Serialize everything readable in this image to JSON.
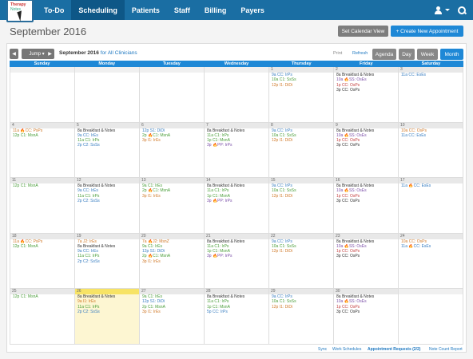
{
  "nav": {
    "logo_line1": "Therapy",
    "logo_line2": "Notes",
    "items": [
      "To-Do",
      "Scheduling",
      "Patients",
      "Staff",
      "Billing",
      "Payers"
    ],
    "active": "Scheduling"
  },
  "title": "September 2016",
  "buttons": {
    "set_view": "Set Calendar View",
    "create": "+ Create New Appointment"
  },
  "toolbar": {
    "prev": "◀",
    "jump": "Jump ▾",
    "next": "▶",
    "month": "September 2016",
    "clinicians": "for All Clinicians",
    "print": "Print",
    "refresh": "Refresh",
    "views": [
      "Agenda",
      "Day",
      "Week",
      "Month"
    ],
    "active_view": "Month"
  },
  "day_headers": [
    "Sunday",
    "Monday",
    "Tuesday",
    "Wednesday",
    "Thursday",
    "Friday",
    "Saturday"
  ],
  "colors": {
    "green": "#4a9e3a",
    "blue": "#3a7fc2",
    "orange": "#d07a2a",
    "purple": "#7b4fa8",
    "red": "#c44040",
    "dark": "#333"
  },
  "weeks": [
    [
      {
        "n": "",
        "e": []
      },
      {
        "n": "",
        "e": []
      },
      {
        "n": "",
        "e": []
      },
      {
        "n": "",
        "e": []
      },
      {
        "n": "1",
        "e": [
          {
            "t": "9a CC: IrPs",
            "c": "blue"
          },
          {
            "t": "10a C1: SsSs",
            "c": "green"
          },
          {
            "t": "12p I1: DiDi",
            "c": "orange"
          }
        ]
      },
      {
        "n": "2",
        "e": [
          {
            "t": "8a Breakfast & Notes",
            "c": "dark"
          },
          {
            "t": "10a 🔥SS: OsEs",
            "c": "purple"
          },
          {
            "t": "1p CC: OsPs",
            "c": "red"
          },
          {
            "t": "3p CC: OsPs",
            "c": "dark"
          }
        ]
      },
      {
        "n": "3",
        "e": [
          {
            "t": "11a CC: EsEs",
            "c": "blue"
          }
        ]
      }
    ],
    [
      {
        "n": "4",
        "e": [
          {
            "t": "11a 🔥CC: PsPs",
            "c": "orange"
          },
          {
            "t": "12p C1: MsnA",
            "c": "green"
          }
        ]
      },
      {
        "n": "5",
        "e": [
          {
            "t": "8a Breakfast & Notes",
            "c": "dark"
          },
          {
            "t": "9a CC: IrEs",
            "c": "blue"
          },
          {
            "t": "11a C1: IrPs",
            "c": "green"
          },
          {
            "t": "2p C2: SsSs",
            "c": "blue"
          }
        ]
      },
      {
        "n": "6",
        "e": [
          {
            "t": "12p S1: DiDi",
            "c": "blue"
          },
          {
            "t": "2p 🔥C1: MsnA",
            "c": "green"
          },
          {
            "t": "3p I1: IrEs",
            "c": "orange"
          }
        ]
      },
      {
        "n": "7",
        "e": [
          {
            "t": "8a Breakfast & Notes",
            "c": "dark"
          },
          {
            "t": "11a C1: IrPs",
            "c": "green"
          },
          {
            "t": "1p C1: MsnA",
            "c": "green"
          },
          {
            "t": "3p 🔥PP: IrPs",
            "c": "purple"
          }
        ]
      },
      {
        "n": "8",
        "e": [
          {
            "t": "9a CC: IrPs",
            "c": "blue"
          },
          {
            "t": "10a C1: SsSs",
            "c": "green"
          },
          {
            "t": "12p I1: DiDi",
            "c": "orange"
          }
        ]
      },
      {
        "n": "9",
        "e": [
          {
            "t": "8a Breakfast & Notes",
            "c": "dark"
          },
          {
            "t": "10a 🔥SS: OsEs",
            "c": "purple"
          },
          {
            "t": "1p CC: OsPs",
            "c": "red"
          },
          {
            "t": "3p CC: OsPs",
            "c": "dark"
          }
        ]
      },
      {
        "n": "10",
        "e": [
          {
            "t": "10a CC: OsPs",
            "c": "orange"
          },
          {
            "t": "11a CC: EsEs",
            "c": "blue"
          }
        ]
      }
    ],
    [
      {
        "n": "11",
        "e": [
          {
            "t": "12p C1: MsnA",
            "c": "green"
          }
        ]
      },
      {
        "n": "12",
        "e": [
          {
            "t": "8a Breakfast & Notes",
            "c": "dark"
          },
          {
            "t": "9a CC: IrEs",
            "c": "blue"
          },
          {
            "t": "11a C1: IrPs",
            "c": "green"
          },
          {
            "t": "2p C2: SsSs",
            "c": "blue"
          }
        ]
      },
      {
        "n": "13",
        "e": [
          {
            "t": "9a C1: IrEs",
            "c": "green"
          },
          {
            "t": "2p 🔥C1: MsnA",
            "c": "green"
          },
          {
            "t": "3p I1: IrEs",
            "c": "orange"
          }
        ]
      },
      {
        "n": "14",
        "e": [
          {
            "t": "8a Breakfast & Notes",
            "c": "dark"
          },
          {
            "t": "11a C1: IrPs",
            "c": "green"
          },
          {
            "t": "1p C1: MsnA",
            "c": "green"
          },
          {
            "t": "3p 🔥PP: IrPs",
            "c": "purple"
          }
        ]
      },
      {
        "n": "15",
        "e": [
          {
            "t": "9a CC: IrPs",
            "c": "blue"
          },
          {
            "t": "10a C1: SsSs",
            "c": "green"
          },
          {
            "t": "12p I1: DiDi",
            "c": "orange"
          }
        ]
      },
      {
        "n": "16",
        "e": [
          {
            "t": "8a Breakfast & Notes",
            "c": "dark"
          },
          {
            "t": "10a 🔥SS: OsEs",
            "c": "purple"
          },
          {
            "t": "1p CC: OsPs",
            "c": "red"
          },
          {
            "t": "3p CC: OsPs",
            "c": "dark"
          }
        ]
      },
      {
        "n": "17",
        "e": [
          {
            "t": "11a 🔥CC: EsEs",
            "c": "blue"
          }
        ]
      }
    ],
    [
      {
        "n": "18",
        "e": [
          {
            "t": "11a 🔥CC: PsPs",
            "c": "orange"
          },
          {
            "t": "12p C1: MsnA",
            "c": "green"
          }
        ]
      },
      {
        "n": "19",
        "e": [
          {
            "t": "7a J2: IrEs",
            "c": "orange"
          },
          {
            "t": "8a Breakfast & Notes",
            "c": "dark"
          },
          {
            "t": "9a CC: IrEs",
            "c": "blue"
          },
          {
            "t": "11a C1: IrPs",
            "c": "green"
          },
          {
            "t": "2p C2: SsSs",
            "c": "blue"
          }
        ]
      },
      {
        "n": "20",
        "e": [
          {
            "t": "7a 🔥J2: MsnZ",
            "c": "orange"
          },
          {
            "t": "9a C1: IrEs",
            "c": "green"
          },
          {
            "t": "12p S1: DiDi",
            "c": "blue"
          },
          {
            "t": "2p 🔥C1: MsnA",
            "c": "green"
          },
          {
            "t": "3p I1: IrEs",
            "c": "orange"
          }
        ]
      },
      {
        "n": "21",
        "e": [
          {
            "t": "8a Breakfast & Notes",
            "c": "dark"
          },
          {
            "t": "11a C1: IrPs",
            "c": "green"
          },
          {
            "t": "1p C1: MsnA",
            "c": "green"
          },
          {
            "t": "3p 🔥PP: IrPs",
            "c": "purple"
          }
        ]
      },
      {
        "n": "22",
        "e": [
          {
            "t": "9a CC: IrPs",
            "c": "blue"
          },
          {
            "t": "10a C1: SsSs",
            "c": "green"
          },
          {
            "t": "12p I1: DiDi",
            "c": "orange"
          }
        ]
      },
      {
        "n": "23",
        "e": [
          {
            "t": "8a Breakfast & Notes",
            "c": "dark"
          },
          {
            "t": "10a 🔥SS: OsEs",
            "c": "purple"
          },
          {
            "t": "1p CC: OsPs",
            "c": "red"
          },
          {
            "t": "3p CC: OsPs",
            "c": "dark"
          }
        ]
      },
      {
        "n": "24",
        "e": [
          {
            "t": "10a CC: OsPs",
            "c": "orange"
          },
          {
            "t": "11a 🔥CC: EsEs",
            "c": "blue"
          }
        ]
      }
    ],
    [
      {
        "n": "25",
        "e": [
          {
            "t": "12p C1: MsnA",
            "c": "green"
          }
        ]
      },
      {
        "n": "26",
        "today": true,
        "e": [
          {
            "t": "8a Breakfast & Notes",
            "c": "dark"
          },
          {
            "t": "9a I1: IrEs",
            "c": "orange"
          },
          {
            "t": "11a C1: IrPs",
            "c": "green"
          },
          {
            "t": "2p C2: SsSs",
            "c": "blue"
          }
        ]
      },
      {
        "n": "27",
        "e": [
          {
            "t": "9a C1: IrEs",
            "c": "green"
          },
          {
            "t": "12p S1: DiDi",
            "c": "blue"
          },
          {
            "t": "2p C1: MsnA",
            "c": "green"
          },
          {
            "t": "3p I1: IrEs",
            "c": "orange"
          }
        ]
      },
      {
        "n": "28",
        "e": [
          {
            "t": "8a Breakfast & Notes",
            "c": "dark"
          },
          {
            "t": "11a C1: IrPs",
            "c": "green"
          },
          {
            "t": "1p C1: MsnA",
            "c": "green"
          },
          {
            "t": "5p CC: IrPs",
            "c": "blue"
          }
        ]
      },
      {
        "n": "29",
        "e": [
          {
            "t": "9a CC: IrPs",
            "c": "blue"
          },
          {
            "t": "10a C1: SsSs",
            "c": "green"
          },
          {
            "t": "12p I1: DiDi",
            "c": "orange"
          }
        ]
      },
      {
        "n": "30",
        "e": [
          {
            "t": "8a Breakfast & Notes",
            "c": "dark"
          },
          {
            "t": "10a 🔥SS: OsEs",
            "c": "purple"
          },
          {
            "t": "1p CC: OsPs",
            "c": "red"
          },
          {
            "t": "3p CC: OsPs",
            "c": "dark"
          }
        ]
      },
      {
        "n": "",
        "e": []
      }
    ]
  ],
  "footer": {
    "sync": "Sync",
    "work_schedules": "Work Schedules",
    "appt_requests": "Appointment Requests (2/2)",
    "note_count": "Note Count Report"
  }
}
